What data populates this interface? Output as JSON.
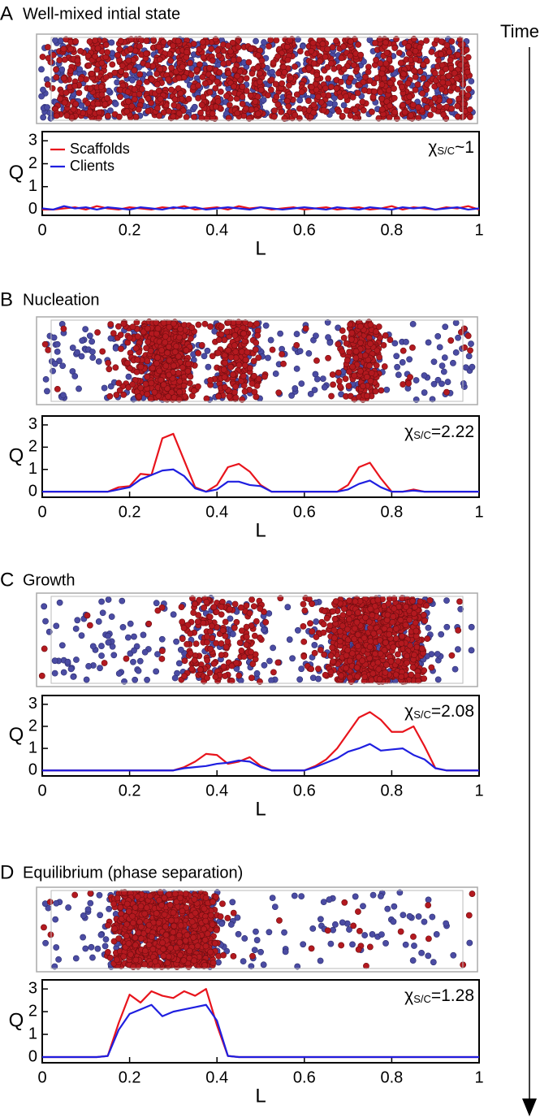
{
  "time_label": "Time",
  "chart_data": [
    {
      "type": "line",
      "label": "A",
      "title": "Well-mixed intial state",
      "xlabel": "L",
      "ylabel": "Q",
      "annotation": {
        "symbol": "χ",
        "subscript": "S/C",
        "text": "~1"
      },
      "legend": true,
      "x": [
        0,
        0.025,
        0.05,
        0.075,
        0.1,
        0.125,
        0.15,
        0.175,
        0.2,
        0.225,
        0.25,
        0.275,
        0.3,
        0.325,
        0.35,
        0.375,
        0.4,
        0.425,
        0.45,
        0.475,
        0.5,
        0.525,
        0.55,
        0.575,
        0.6,
        0.625,
        0.65,
        0.675,
        0.7,
        0.725,
        0.75,
        0.775,
        0.8,
        0.825,
        0.85,
        0.875,
        0.9,
        0.925,
        0.95,
        0.975,
        1
      ],
      "xlim": [
        0,
        1
      ],
      "ylim": [
        -0.25,
        3.4
      ],
      "xticks": [
        0,
        0.2,
        0.4,
        0.6,
        0.8,
        1
      ],
      "yticks": [
        0,
        1,
        2,
        3
      ],
      "series": [
        {
          "name": "Scaffolds",
          "color": "#e8141c",
          "values": [
            0,
            0,
            0.05,
            0.1,
            0,
            0.15,
            0.05,
            0,
            0.1,
            0.05,
            0,
            0.1,
            0.05,
            0.15,
            0,
            0.05,
            0.1,
            0,
            0.15,
            0.05,
            0.1,
            0,
            0.05,
            0.1,
            0,
            0.05,
            0.1,
            0,
            0.05,
            0.1,
            0,
            0.05,
            0.15,
            0,
            0.1,
            0.05,
            0,
            0.1,
            0.05,
            0.15,
            0
          ]
        },
        {
          "name": "Clients",
          "color": "#1f1fe0",
          "values": [
            0.05,
            0,
            0.15,
            0.05,
            0.1,
            0,
            0.1,
            0.05,
            0,
            0.1,
            0.05,
            0,
            0.1,
            0.05,
            0.1,
            0,
            0.05,
            0.1,
            0.05,
            0,
            0.1,
            0.05,
            0,
            0.05,
            0.1,
            0.05,
            0,
            0.1,
            0.05,
            0,
            0.1,
            0.05,
            0,
            0.1,
            0.05,
            0.1,
            0,
            0.05,
            0.1,
            0,
            0.05
          ]
        }
      ]
    },
    {
      "type": "line",
      "label": "B",
      "title": "Nucleation",
      "xlabel": "L",
      "ylabel": "Q",
      "annotation": {
        "symbol": "χ",
        "subscript": "S/C",
        "text": "=2.22"
      },
      "legend": false,
      "x": [
        0,
        0.025,
        0.05,
        0.075,
        0.1,
        0.125,
        0.15,
        0.175,
        0.2,
        0.225,
        0.25,
        0.275,
        0.3,
        0.325,
        0.35,
        0.375,
        0.4,
        0.425,
        0.45,
        0.475,
        0.5,
        0.525,
        0.55,
        0.575,
        0.6,
        0.625,
        0.65,
        0.675,
        0.7,
        0.725,
        0.75,
        0.775,
        0.8,
        0.825,
        0.85,
        0.875,
        0.9,
        0.925,
        0.95,
        0.975,
        1
      ],
      "xlim": [
        0,
        1
      ],
      "ylim": [
        -0.25,
        3.4
      ],
      "xticks": [
        0,
        0.2,
        0.4,
        0.6,
        0.8,
        1
      ],
      "yticks": [
        0,
        1,
        2,
        3
      ],
      "series": [
        {
          "color": "#e8141c",
          "values": [
            0,
            0,
            0,
            0,
            0,
            0,
            0,
            0.2,
            0.25,
            0.8,
            0.75,
            2.4,
            2.6,
            1.4,
            0.2,
            0,
            0.3,
            1.1,
            1.25,
            0.9,
            0.3,
            0,
            0,
            0,
            0,
            0,
            0,
            0,
            0.3,
            1.1,
            1.3,
            0.6,
            0,
            0,
            0.1,
            0,
            0,
            0,
            0,
            0,
            0
          ]
        },
        {
          "color": "#1f1fe0",
          "values": [
            0,
            0,
            0,
            0,
            0,
            0,
            0,
            0.1,
            0.2,
            0.55,
            0.75,
            0.95,
            1.0,
            0.7,
            0.15,
            0,
            0.1,
            0.45,
            0.45,
            0.3,
            0.25,
            0,
            0,
            0,
            0,
            0,
            0,
            0,
            0.1,
            0.35,
            0.5,
            0.2,
            0,
            0,
            0.05,
            0,
            0,
            0,
            0,
            0,
            0
          ]
        }
      ]
    },
    {
      "type": "line",
      "label": "C",
      "title": "Growth",
      "xlabel": "L",
      "ylabel": "Q",
      "annotation": {
        "symbol": "χ",
        "subscript": "S/C",
        "text": "=2.08"
      },
      "legend": false,
      "x": [
        0,
        0.025,
        0.05,
        0.075,
        0.1,
        0.125,
        0.15,
        0.175,
        0.2,
        0.225,
        0.25,
        0.275,
        0.3,
        0.325,
        0.35,
        0.375,
        0.4,
        0.425,
        0.45,
        0.475,
        0.5,
        0.525,
        0.55,
        0.575,
        0.6,
        0.625,
        0.65,
        0.675,
        0.7,
        0.725,
        0.75,
        0.775,
        0.8,
        0.825,
        0.85,
        0.875,
        0.9,
        0.925,
        0.95,
        0.975,
        1
      ],
      "xlim": [
        0,
        1
      ],
      "ylim": [
        -0.25,
        3.4
      ],
      "xticks": [
        0,
        0.2,
        0.4,
        0.6,
        0.8,
        1
      ],
      "yticks": [
        0,
        1,
        2,
        3
      ],
      "series": [
        {
          "color": "#e8141c",
          "values": [
            0,
            0,
            0,
            0,
            0,
            0,
            0,
            0,
            0,
            0,
            0,
            0,
            0,
            0.15,
            0.4,
            0.75,
            0.7,
            0.3,
            0.4,
            0.6,
            0.2,
            0,
            0,
            0,
            0,
            0.2,
            0.5,
            1.0,
            1.7,
            2.4,
            2.65,
            2.3,
            1.75,
            1.75,
            2.0,
            1.1,
            0.1,
            0,
            0,
            0,
            0
          ]
        },
        {
          "color": "#1f1fe0",
          "values": [
            0,
            0,
            0,
            0,
            0,
            0,
            0,
            0,
            0,
            0,
            0,
            0,
            0,
            0.1,
            0.15,
            0.2,
            0.3,
            0.35,
            0.45,
            0.4,
            0.15,
            0,
            0,
            0,
            0,
            0.15,
            0.35,
            0.55,
            0.85,
            1.0,
            1.2,
            0.9,
            0.95,
            1.0,
            0.7,
            0.5,
            0.1,
            0,
            0,
            0,
            0
          ]
        }
      ]
    },
    {
      "type": "line",
      "label": "D",
      "title": "Equilibrium (phase separation)",
      "xlabel": "L",
      "ylabel": "Q",
      "annotation": {
        "symbol": "χ",
        "subscript": "S/C",
        "text": "=1.28"
      },
      "legend": false,
      "x": [
        0,
        0.025,
        0.05,
        0.075,
        0.1,
        0.125,
        0.15,
        0.175,
        0.2,
        0.225,
        0.25,
        0.275,
        0.3,
        0.325,
        0.35,
        0.375,
        0.4,
        0.425,
        0.45,
        0.475,
        0.5,
        0.525,
        0.55,
        0.575,
        0.6,
        0.625,
        0.65,
        0.675,
        0.7,
        0.725,
        0.75,
        0.775,
        0.8,
        0.825,
        0.85,
        0.875,
        0.9,
        0.925,
        0.95,
        0.975,
        1
      ],
      "xlim": [
        0,
        1
      ],
      "ylim": [
        -0.25,
        3.4
      ],
      "xticks": [
        0,
        0.2,
        0.4,
        0.6,
        0.8,
        1
      ],
      "yticks": [
        0,
        1,
        2,
        3
      ],
      "series": [
        {
          "color": "#e8141c",
          "values": [
            0,
            0,
            0,
            0,
            0,
            0,
            0.05,
            1.5,
            2.75,
            2.4,
            2.9,
            2.7,
            2.6,
            2.9,
            2.7,
            3.0,
            1.4,
            0.05,
            0,
            0,
            0,
            0,
            0,
            0,
            0,
            0,
            0,
            0,
            0,
            0,
            0,
            0,
            0,
            0,
            0,
            0,
            0,
            0,
            0,
            0,
            0
          ]
        },
        {
          "color": "#1f1fe0",
          "values": [
            0,
            0,
            0,
            0,
            0,
            0,
            0.05,
            1.2,
            1.9,
            2.1,
            2.3,
            1.8,
            2.0,
            2.1,
            2.2,
            2.3,
            1.6,
            0.05,
            0,
            0,
            0,
            0,
            0,
            0,
            0,
            0,
            0,
            0,
            0,
            0,
            0,
            0,
            0,
            0,
            0,
            0,
            0,
            0,
            0,
            0,
            0
          ]
        }
      ]
    }
  ]
}
